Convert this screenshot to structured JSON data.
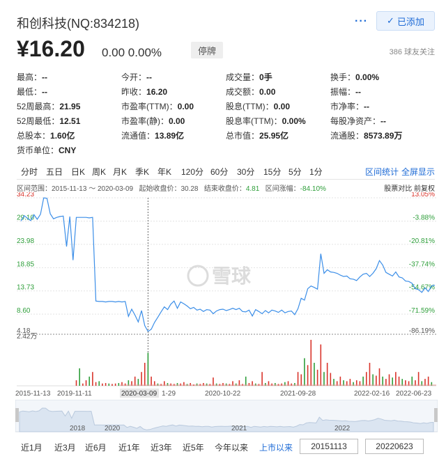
{
  "header": {
    "stock_name": "和创科技(NQ:834218)",
    "more_label": "···",
    "added_label": "已添加"
  },
  "quote": {
    "price": "¥16.20",
    "change": "0.00 0.00%",
    "status": "停牌",
    "followers": "386  球友关注"
  },
  "stats": [
    [
      {
        "label": "最高：",
        "value": "--"
      },
      {
        "label": "今开：",
        "value": "--"
      },
      {
        "label": "成交量：",
        "value": "0手"
      },
      {
        "label": "换手：",
        "value": "0.00%"
      }
    ],
    [
      {
        "label": "最低：",
        "value": "--"
      },
      {
        "label": "昨收：",
        "value": "16.20"
      },
      {
        "label": "成交额：",
        "value": "0.00"
      },
      {
        "label": "振幅：",
        "value": "--"
      }
    ],
    [
      {
        "label": "52周最高：",
        "value": "21.95"
      },
      {
        "label": "市盈率(TTM)：",
        "value": "0.00"
      },
      {
        "label": "股息(TTM)：",
        "value": "0.00"
      },
      {
        "label": "市净率：",
        "value": "--"
      }
    ],
    [
      {
        "label": "52周最低：",
        "value": "12.51"
      },
      {
        "label": "市盈率(静)：",
        "value": "0.00"
      },
      {
        "label": "股息率(TTM)：",
        "value": "0.00%"
      },
      {
        "label": "每股净资产：",
        "value": "--"
      }
    ],
    [
      {
        "label": "总股本：",
        "value": "1.60亿"
      },
      {
        "label": "流通值：",
        "value": "13.89亿"
      },
      {
        "label": "总市值：",
        "value": "25.95亿"
      },
      {
        "label": "流通股：",
        "value": "8573.89万"
      }
    ],
    [
      {
        "label": "货币单位：",
        "value": "CNY"
      }
    ]
  ],
  "tabs": [
    "分时",
    "五日",
    "日K",
    "周K",
    "月K",
    "季K",
    "年K",
    "120分",
    "60分",
    "30分",
    "15分",
    "5分",
    "1分"
  ],
  "tab_links": {
    "interval_stats": "区间统计",
    "fullscreen": "全屏显示"
  },
  "interval": {
    "range_label": "区间范围：",
    "range_value": "2015-11-13 ～ 2020-03-09",
    "start_label": "起始收盘价：",
    "start_value": "30.28",
    "end_label": "结束收盘价：",
    "end_value": "4.81",
    "change_label": "区间涨幅：",
    "change_value": "-84.10%",
    "right_label": "股票对比  前复权"
  },
  "watermark": "雪球",
  "chart_data": {
    "type": "line",
    "price_ticks": [
      "34.23",
      "29.10",
      "23.98",
      "18.85",
      "13.73",
      "8.60",
      "4.18"
    ],
    "pct_ticks": [
      "13.05%",
      "-3.88%",
      "-20.81%",
      "-37.74%",
      "-54.67%",
      "-71.59%",
      "-86.19%"
    ],
    "volume_max_label": "2.42万",
    "x_ticks": [
      "2015-11-13",
      "2019-11-11",
      "2020-03-09",
      "1-29",
      "2020-10-22",
      "2021-09-28",
      "2022-02-16",
      "2022-06-23"
    ],
    "crosshair_x_label": "2020-03-09",
    "crosshair_y_label": "4.18",
    "ylim": [
      4.18,
      34.23
    ],
    "series": [
      {
        "values": [
          29.1,
          30.3,
          29.7,
          29.2,
          30.5,
          29.5,
          30.6,
          34.2,
          34.1,
          30.7,
          29.6,
          29.9,
          30.1,
          30.2,
          23.5,
          30.1,
          20.5,
          29.9,
          29.9,
          29.9,
          29.9,
          29.8,
          29.9,
          11.5,
          11.4,
          11.4,
          11.3,
          11.4,
          11.4,
          11.3,
          11.4,
          11.3,
          11.4,
          8.1,
          9.7,
          8.4,
          6.9,
          9.4,
          6.1,
          4.8,
          5.3,
          6.8,
          7.9,
          9.1,
          10.2,
          9.6,
          10.8,
          11.5,
          9.9,
          11.3,
          10.9,
          10.4,
          9.8,
          10.1,
          9.5,
          9.7,
          9.2,
          9.6,
          9.5,
          8.7,
          9.3,
          9.6,
          9.7,
          9.4,
          9.6,
          9.9,
          9.6,
          9.9,
          9.2,
          9.1,
          9.5,
          8.2,
          9.6,
          9.2,
          8.7,
          9.4,
          8.9,
          9.5,
          9.3,
          9.0,
          9.5,
          8.9,
          9.2,
          9.3,
          8.5,
          9.8,
          12.1,
          11.7,
          14.2,
          14.8,
          14.5,
          14.1,
          21.9,
          17.6,
          18.4,
          17.9,
          17.8,
          17.6,
          17.2,
          16.9,
          17.0,
          16.4,
          16.3,
          16.0,
          16.8,
          17.4,
          17.6,
          16.9,
          17.6,
          18.6,
          20.4,
          19.4,
          17.8,
          17.4,
          17.0,
          17.9,
          16.8,
          16.6,
          15.9,
          15.8,
          15.4,
          14.2,
          14.0,
          13.4,
          14.4,
          13.6,
          14.8,
          15.0
        ]
      }
    ],
    "volume": [
      0,
      0,
      0,
      0,
      0,
      0,
      0,
      0,
      0,
      0,
      0,
      0,
      0,
      0,
      0,
      0,
      0,
      0.12,
      0.38,
      0.05,
      0.12,
      0.2,
      0.3,
      0.08,
      0.1,
      0.05,
      0.06,
      0.05,
      0.04,
      0.05,
      0.06,
      0.08,
      0.05,
      0.12,
      0.1,
      0.2,
      0.15,
      0.3,
      0.5,
      0.72,
      0.2,
      0.1,
      0.05,
      0.04,
      0.1,
      0.06,
      0.05,
      0.04,
      0.06,
      0.05,
      0.08,
      0.04,
      0.06,
      0.03,
      0.05,
      0.04,
      0.06,
      0.05,
      0.04,
      0.18,
      0.05,
      0.04,
      0.06,
      0.05,
      0.04,
      0.1,
      0.05,
      0.12,
      0.04,
      0.2,
      0.06,
      0.1,
      0.05,
      0.04,
      0.3,
      0.06,
      0.1,
      0.05,
      0.06,
      0.04,
      0.05,
      0.08,
      0.1,
      0.05,
      0.06,
      0.3,
      0.25,
      0.6,
      0.45,
      1.0,
      0.5,
      0.35,
      0.9,
      0.3,
      0.5,
      0.28,
      0.15,
      0.1,
      0.2,
      0.12,
      0.1,
      0.15,
      0.08,
      0.12,
      0.1,
      0.2,
      0.3,
      0.5,
      0.25,
      0.22,
      0.38,
      0.2,
      0.15,
      0.25,
      0.18,
      0.3,
      0.2,
      0.15,
      0.12,
      0.1,
      0.2,
      0.12,
      0.3,
      0.1,
      0.15,
      0.2,
      0.08
    ],
    "volume_colors": "mixed",
    "navigator_labels": [
      "2018",
      "2020",
      "2021",
      "2022"
    ]
  },
  "ranges": [
    "近1月",
    "近3月",
    "近6月",
    "近1年",
    "近3年",
    "近5年",
    "今年以来",
    "上市以来"
  ],
  "active_range": "上市以来",
  "date_from": "20151113",
  "date_to": "20220623",
  "colors": {
    "accent": "#1e6bd6",
    "line": "#3b8ee8",
    "up": "#d9342b",
    "down": "#2e9e3a",
    "navigator_fill": "#dbe5f1"
  }
}
